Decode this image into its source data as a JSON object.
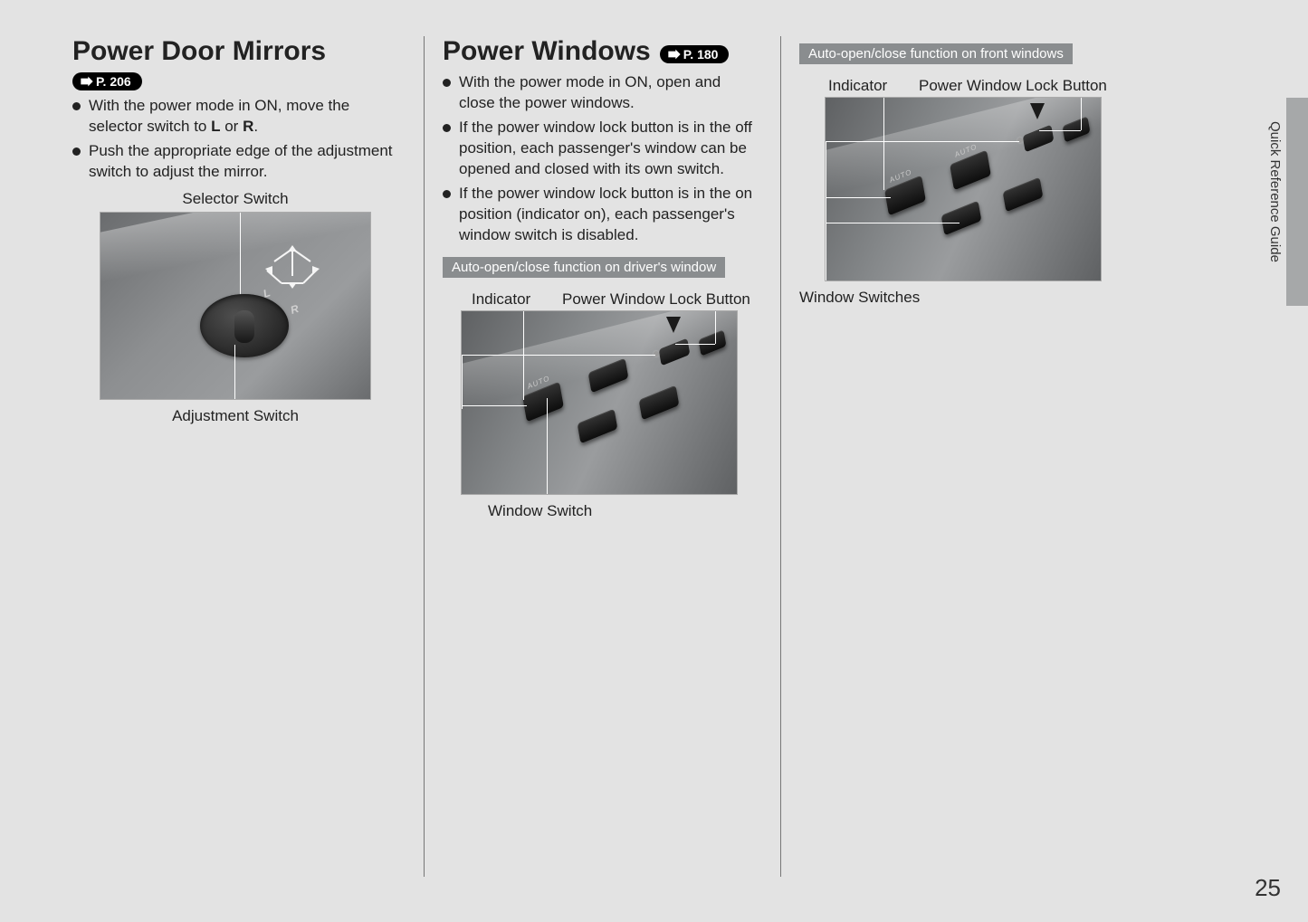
{
  "sideTab": "Quick Reference Guide",
  "pageNumber": "25",
  "col1": {
    "heading": "Power Door Mirrors",
    "pageRef": "P. 206",
    "bullets_html": [
      "With the power mode in ON, move the selector switch to <b>L</b> or <b>R</b>.",
      "Push the appropriate edge of the adjustment switch to adjust the mirror."
    ],
    "label_top": "Selector Switch",
    "label_bottom": "Adjustment Switch"
  },
  "col2": {
    "heading": "Power Windows",
    "pageRef": "P. 180",
    "bullets": [
      "With the power mode in ON, open and close the power windows.",
      "If the power window lock button is in the off position, each passenger's window can be opened and closed with its own switch.",
      "If the power window lock button is in the on position (indicator on), each passenger's window switch is disabled."
    ],
    "subHeader": "Auto-open/close function on driver's window",
    "labelIndicator": "Indicator",
    "labelLock": "Power Window Lock Button",
    "labelBottom": "Window Switch"
  },
  "col3": {
    "subHeader": "Auto-open/close function on front windows",
    "labelIndicator": "Indicator",
    "labelLock": "Power Window Lock Button",
    "labelBottom": "Window Switches"
  },
  "colors": {
    "pageBg": "#e3e3e3",
    "subHeaderBg": "#8a8d8f",
    "text": "#222222"
  }
}
